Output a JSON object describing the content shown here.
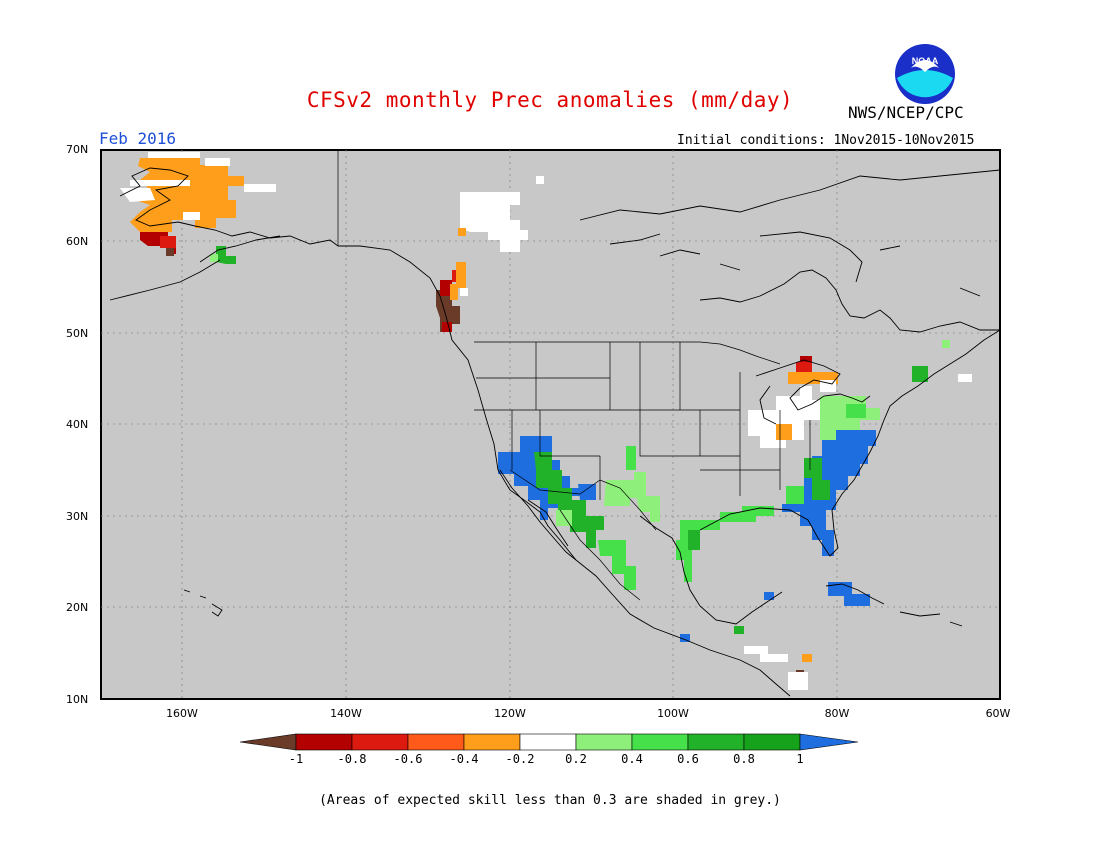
{
  "title": "CFSv2 monthly Prec anomalies (mm/day)",
  "agency": "NWS/NCEP/CPC",
  "logo_text": "NOAA",
  "valid_month": "Feb 2016",
  "initial_conditions": "Initial conditions: 1Nov2015-10Nov2015",
  "footnote": "(Areas of expected skill less than 0.3 are shaded in grey.)",
  "lat_labels": [
    "70N",
    "60N",
    "50N",
    "40N",
    "30N",
    "20N",
    "10N"
  ],
  "lon_labels": [
    "160W",
    "140W",
    "120W",
    "100W",
    "80W",
    "60W"
  ],
  "colorbar": {
    "labels": [
      "-1",
      "-0.8",
      "-0.6",
      "-0.4",
      "-0.2",
      "0.2",
      "0.4",
      "0.6",
      "0.8",
      "1"
    ],
    "colors": [
      "#6b3b2a",
      "#b30000",
      "#dd1a10",
      "#ff5a1a",
      "#ff9e1a",
      "#ffffff",
      "#8ef07a",
      "#45e04a",
      "#22b22a",
      "#17a21c",
      "#1e6ee0"
    ]
  },
  "colors": {
    "skill_mask": "#c8c8c8",
    "title": "#e00000",
    "month": "#1e4fd8"
  }
}
